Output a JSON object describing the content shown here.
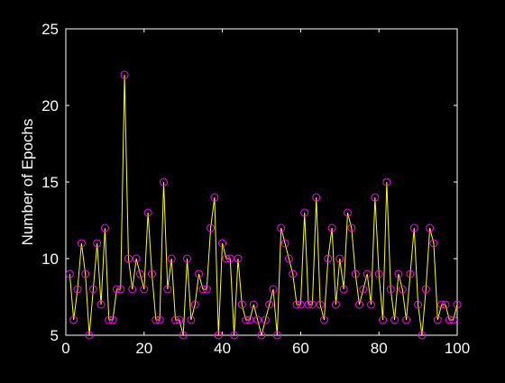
{
  "chart_data": {
    "type": "line",
    "title": "",
    "xlabel": "",
    "ylabel": "Number of Epochs",
    "xlim": [
      0,
      100
    ],
    "ylim": [
      5,
      25
    ],
    "xticks": [
      0,
      20,
      40,
      60,
      80,
      100
    ],
    "yticks": [
      5,
      10,
      15,
      20,
      25
    ],
    "grid": false,
    "legend": "none",
    "background_color": "#000000",
    "axes_color": "#ffffff",
    "line_color": "#ffff00",
    "marker_color": "#ff00ff",
    "marker": "circle",
    "series": [
      {
        "x": [
          1,
          2,
          3,
          4,
          5,
          6,
          7,
          8,
          9,
          10,
          11,
          12,
          13,
          14,
          15,
          16,
          17,
          18,
          19,
          20,
          21,
          22,
          23,
          24,
          25,
          26,
          27,
          28,
          29,
          30,
          31,
          32,
          33,
          34,
          35,
          36,
          37,
          38,
          39,
          40,
          41,
          42,
          43,
          44,
          45,
          46,
          47,
          48,
          49,
          50,
          51,
          52,
          53,
          54,
          55,
          56,
          57,
          58,
          59,
          60,
          61,
          62,
          63,
          64,
          65,
          66,
          67,
          68,
          69,
          70,
          71,
          72,
          73,
          74,
          75,
          76,
          77,
          78,
          79,
          80,
          81,
          82,
          83,
          84,
          85,
          86,
          87,
          88,
          89,
          90,
          91,
          92,
          93,
          94,
          95,
          96,
          97,
          98,
          99,
          100
        ],
        "values": [
          9,
          6,
          8,
          11,
          9,
          5,
          8,
          11,
          7,
          12,
          6,
          6,
          8,
          8,
          22,
          10,
          8,
          10,
          9,
          8,
          13,
          9,
          6,
          6,
          15,
          8,
          10,
          6,
          6,
          5,
          10,
          6,
          7,
          9,
          8,
          8,
          12,
          14,
          5,
          11,
          10,
          10,
          5,
          10,
          7,
          6,
          6,
          7,
          6,
          5,
          6,
          7,
          8,
          5,
          12,
          11,
          10,
          9,
          7,
          7,
          13,
          7,
          7,
          14,
          7,
          6,
          10,
          12,
          7,
          10,
          8,
          13,
          12,
          9,
          7,
          8,
          9,
          7,
          14,
          9,
          6,
          15,
          8,
          6,
          9,
          8,
          6,
          9,
          12,
          7,
          5,
          8,
          12,
          11,
          6,
          7,
          7,
          6,
          6,
          7
        ]
      }
    ]
  }
}
